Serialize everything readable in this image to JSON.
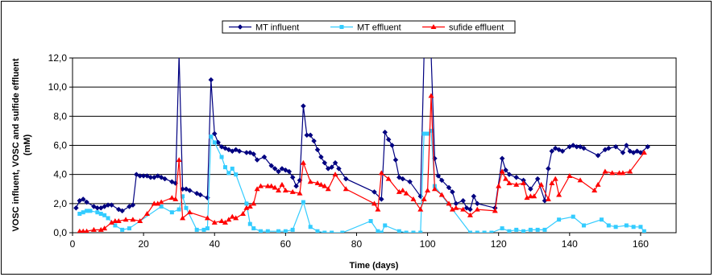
{
  "chart_data": {
    "type": "line",
    "xlabel": "Time (days)",
    "ylabel_line1": "VOSC influent, VOSC and sulfide effluent",
    "ylabel_line2": "(mM)",
    "xlim": [
      0,
      170
    ],
    "ylim": [
      0,
      12
    ],
    "x_ticks": [
      "0",
      "20",
      "40",
      "60",
      "80",
      "100",
      "120",
      "140",
      "160"
    ],
    "y_ticks": [
      "0,0",
      "2,0",
      "4,0",
      "6,0",
      "8,0",
      "10,0",
      "12,0"
    ],
    "x_tick_values": [
      0,
      20,
      40,
      60,
      80,
      100,
      120,
      140,
      160
    ],
    "y_tick_values": [
      0,
      2,
      4,
      6,
      8,
      10,
      12
    ],
    "horizontal_grid": true,
    "legend_position": "top-center",
    "series": [
      {
        "name": "MT influent",
        "color": "#000080",
        "marker": "diamond",
        "points": [
          [
            1,
            1.7
          ],
          [
            2,
            2.2
          ],
          [
            3,
            2.3
          ],
          [
            4,
            2.1
          ],
          [
            6,
            1.8
          ],
          [
            7,
            1.7
          ],
          [
            8,
            1.7
          ],
          [
            9,
            1.8
          ],
          [
            10,
            1.9
          ],
          [
            11,
            1.9
          ],
          [
            13,
            1.6
          ],
          [
            14,
            1.5
          ],
          [
            16,
            1.8
          ],
          [
            17,
            1.9
          ],
          [
            18,
            4.0
          ],
          [
            19,
            3.9
          ],
          [
            20,
            3.9
          ],
          [
            21,
            3.9
          ],
          [
            22,
            3.8
          ],
          [
            23,
            3.8
          ],
          [
            24,
            3.9
          ],
          [
            25,
            3.8
          ],
          [
            26,
            3.7
          ],
          [
            28,
            3.5
          ],
          [
            29,
            3.4
          ],
          [
            30,
            12.2
          ],
          [
            31,
            3.0
          ],
          [
            32,
            3.0
          ],
          [
            33,
            2.9
          ],
          [
            35,
            2.7
          ],
          [
            36,
            2.6
          ],
          [
            38,
            2.4
          ],
          [
            39,
            10.5
          ],
          [
            40,
            6.8
          ],
          [
            41,
            6.2
          ],
          [
            42,
            5.9
          ],
          [
            43,
            5.8
          ],
          [
            44,
            5.7
          ],
          [
            45,
            5.6
          ],
          [
            46,
            5.7
          ],
          [
            47,
            5.6
          ],
          [
            49,
            5.5
          ],
          [
            50,
            5.5
          ],
          [
            51,
            5.4
          ],
          [
            52,
            5.0
          ],
          [
            54,
            5.2
          ],
          [
            56,
            4.6
          ],
          [
            57,
            4.4
          ],
          [
            58,
            4.2
          ],
          [
            59,
            4.4
          ],
          [
            60,
            4.3
          ],
          [
            61,
            4.2
          ],
          [
            62,
            3.8
          ],
          [
            63,
            3.2
          ],
          [
            64,
            3.6
          ],
          [
            65,
            8.7
          ],
          [
            66,
            6.7
          ],
          [
            67,
            6.7
          ],
          [
            68,
            6.3
          ],
          [
            69,
            5.7
          ],
          [
            70,
            5.2
          ],
          [
            71,
            4.8
          ],
          [
            72,
            4.4
          ],
          [
            73,
            4.5
          ],
          [
            74,
            4.8
          ],
          [
            75,
            4.4
          ],
          [
            77,
            3.7
          ],
          [
            85,
            2.8
          ],
          [
            87,
            2.3
          ],
          [
            88,
            6.9
          ],
          [
            89,
            6.4
          ],
          [
            90,
            6.0
          ],
          [
            91,
            5.0
          ],
          [
            92,
            3.8
          ],
          [
            93,
            3.7
          ],
          [
            95,
            3.5
          ],
          [
            98,
            2.5
          ],
          [
            99,
            12.2
          ],
          [
            101,
            12.2
          ],
          [
            102,
            5.1
          ],
          [
            103,
            3.9
          ],
          [
            104,
            3.6
          ],
          [
            106,
            3.1
          ],
          [
            107,
            2.8
          ],
          [
            108,
            2.0
          ],
          [
            110,
            2.2
          ],
          [
            111,
            1.7
          ],
          [
            112,
            1.6
          ],
          [
            113,
            2.5
          ],
          [
            114,
            2.0
          ],
          [
            119,
            1.7
          ],
          [
            121,
            5.1
          ],
          [
            122,
            4.3
          ],
          [
            123,
            4.0
          ],
          [
            125,
            3.8
          ],
          [
            127,
            3.6
          ],
          [
            129,
            3.0
          ],
          [
            131,
            3.7
          ],
          [
            133,
            2.2
          ],
          [
            134,
            4.4
          ],
          [
            135,
            5.6
          ],
          [
            136,
            5.8
          ],
          [
            137,
            5.7
          ],
          [
            138,
            5.6
          ],
          [
            140,
            5.9
          ],
          [
            141,
            6.0
          ],
          [
            142,
            5.9
          ],
          [
            143,
            5.9
          ],
          [
            144,
            5.8
          ],
          [
            148,
            5.3
          ],
          [
            150,
            5.7
          ],
          [
            151,
            5.8
          ],
          [
            153,
            5.9
          ],
          [
            155,
            5.5
          ],
          [
            156,
            6.0
          ],
          [
            157,
            5.6
          ],
          [
            158,
            5.5
          ],
          [
            159,
            5.6
          ],
          [
            160,
            5.5
          ],
          [
            162,
            5.9
          ]
        ]
      },
      {
        "name": "MT effluent",
        "color": "#33CCFF",
        "marker": "square",
        "points": [
          [
            2,
            1.3
          ],
          [
            3,
            1.4
          ],
          [
            4,
            1.5
          ],
          [
            5,
            1.5
          ],
          [
            7,
            1.4
          ],
          [
            8,
            1.3
          ],
          [
            9,
            1.2
          ],
          [
            10,
            1.0
          ],
          [
            12,
            0.5
          ],
          [
            14,
            0.2
          ],
          [
            16,
            0.3
          ],
          [
            25,
            1.8
          ],
          [
            28,
            1.4
          ],
          [
            30,
            1.6
          ],
          [
            31,
            2.5
          ],
          [
            32,
            1.7
          ],
          [
            35,
            0.2
          ],
          [
            37,
            0.2
          ],
          [
            38,
            0.3
          ],
          [
            39,
            6.6
          ],
          [
            40,
            6.2
          ],
          [
            42,
            5.2
          ],
          [
            43,
            4.5
          ],
          [
            44,
            4.1
          ],
          [
            45,
            4.4
          ],
          [
            46,
            4.0
          ],
          [
            49,
            2.0
          ],
          [
            50,
            0.6
          ],
          [
            51,
            0.3
          ],
          [
            53,
            0.1
          ],
          [
            55,
            0.1
          ],
          [
            58,
            0.1
          ],
          [
            60,
            0.1
          ],
          [
            62,
            0.2
          ],
          [
            65,
            2.1
          ],
          [
            67,
            0.4
          ],
          [
            69,
            0.1
          ],
          [
            71,
            0.0
          ],
          [
            73,
            0.0
          ],
          [
            76,
            0.0
          ],
          [
            84,
            0.8
          ],
          [
            86,
            0.1
          ],
          [
            87,
            0.0
          ],
          [
            88,
            0.5
          ],
          [
            92,
            0.1
          ],
          [
            94,
            0.0
          ],
          [
            96,
            0.0
          ],
          [
            98,
            0.0
          ],
          [
            99,
            6.8
          ],
          [
            100,
            6.8
          ],
          [
            101,
            7.0
          ],
          [
            102,
            3.2
          ],
          [
            112,
            0.0
          ],
          [
            114,
            0.0
          ],
          [
            116,
            0.0
          ],
          [
            118,
            0.0
          ],
          [
            121,
            0.3
          ],
          [
            123,
            0.1
          ],
          [
            125,
            0.2
          ],
          [
            127,
            0.1
          ],
          [
            129,
            0.2
          ],
          [
            131,
            0.2
          ],
          [
            133,
            0.2
          ],
          [
            137,
            0.9
          ],
          [
            141,
            1.1
          ],
          [
            144,
            0.5
          ],
          [
            149,
            0.9
          ],
          [
            151,
            0.5
          ],
          [
            153,
            0.4
          ],
          [
            156,
            0.5
          ],
          [
            158,
            0.4
          ],
          [
            160,
            0.4
          ],
          [
            161,
            0.1
          ]
        ]
      },
      {
        "name": "sufide effluent",
        "color": "#FF0000",
        "marker": "triangle",
        "points": [
          [
            2,
            0.1
          ],
          [
            3,
            0.1
          ],
          [
            4,
            0.1
          ],
          [
            6,
            0.2
          ],
          [
            8,
            0.2
          ],
          [
            9,
            0.3
          ],
          [
            11,
            0.7
          ],
          [
            12,
            0.8
          ],
          [
            13,
            0.8
          ],
          [
            15,
            0.9
          ],
          [
            17,
            0.9
          ],
          [
            19,
            0.8
          ],
          [
            21,
            1.3
          ],
          [
            23,
            2.0
          ],
          [
            24,
            2.0
          ],
          [
            25,
            2.1
          ],
          [
            28,
            2.4
          ],
          [
            29,
            2.3
          ],
          [
            30,
            5.0
          ],
          [
            31,
            1.0
          ],
          [
            33,
            1.4
          ],
          [
            38,
            1.0
          ],
          [
            40,
            0.7
          ],
          [
            42,
            0.8
          ],
          [
            43,
            0.7
          ],
          [
            44,
            0.9
          ],
          [
            45,
            1.1
          ],
          [
            46,
            1.0
          ],
          [
            48,
            1.3
          ],
          [
            49,
            1.7
          ],
          [
            50,
            1.8
          ],
          [
            51,
            2.0
          ],
          [
            52,
            3.0
          ],
          [
            53,
            3.2
          ],
          [
            55,
            3.2
          ],
          [
            56,
            3.2
          ],
          [
            57,
            3.1
          ],
          [
            58,
            2.9
          ],
          [
            59,
            3.3
          ],
          [
            60,
            2.9
          ],
          [
            62,
            2.8
          ],
          [
            64,
            2.7
          ],
          [
            65,
            4.8
          ],
          [
            67,
            3.5
          ],
          [
            69,
            3.4
          ],
          [
            70,
            3.3
          ],
          [
            71,
            3.2
          ],
          [
            72,
            3.0
          ],
          [
            74,
            4.0
          ],
          [
            77,
            3.0
          ],
          [
            85,
            2.0
          ],
          [
            86,
            1.6
          ],
          [
            87,
            4.1
          ],
          [
            89,
            3.7
          ],
          [
            92,
            2.8
          ],
          [
            93,
            2.9
          ],
          [
            94,
            2.7
          ],
          [
            96,
            2.3
          ],
          [
            98,
            1.6
          ],
          [
            99,
            2.3
          ],
          [
            100,
            2.9
          ],
          [
            101,
            9.4
          ],
          [
            102,
            3.0
          ],
          [
            104,
            2.6
          ],
          [
            106,
            2.0
          ],
          [
            107,
            1.6
          ],
          [
            108,
            1.7
          ],
          [
            110,
            1.6
          ],
          [
            112,
            1.2
          ],
          [
            114,
            1.6
          ],
          [
            119,
            1.5
          ],
          [
            120,
            3.2
          ],
          [
            121,
            4.2
          ],
          [
            122,
            3.7
          ],
          [
            123,
            3.4
          ],
          [
            125,
            3.3
          ],
          [
            127,
            3.4
          ],
          [
            128,
            2.4
          ],
          [
            129,
            2.5
          ],
          [
            130,
            2.5
          ],
          [
            132,
            3.3
          ],
          [
            134,
            2.3
          ],
          [
            135,
            3.4
          ],
          [
            136,
            3.7
          ],
          [
            137,
            2.6
          ],
          [
            140,
            3.9
          ],
          [
            143,
            3.6
          ],
          [
            147,
            2.9
          ],
          [
            148,
            3.3
          ],
          [
            150,
            4.2
          ],
          [
            152,
            4.1
          ],
          [
            154,
            4.1
          ],
          [
            155,
            4.1
          ],
          [
            157,
            4.2
          ],
          [
            161,
            5.5
          ]
        ]
      }
    ]
  }
}
